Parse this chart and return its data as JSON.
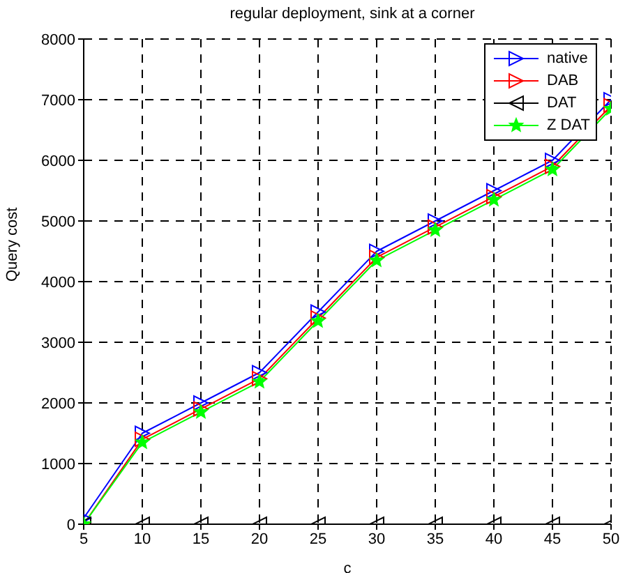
{
  "chart_data": {
    "type": "line",
    "title": "regular deployment, sink at a corner",
    "xlabel": "c",
    "ylabel": "Query cost",
    "x": [
      5,
      10,
      15,
      20,
      25,
      30,
      35,
      40,
      45,
      50
    ],
    "series": [
      {
        "name": "native",
        "color": "#0000ff",
        "marker": "triangle",
        "values": [
          100,
          1500,
          2000,
          2500,
          3500,
          4500,
          5000,
          5500,
          6000,
          7000
        ]
      },
      {
        "name": "DAB",
        "color": "#ff0000",
        "marker": "triangle",
        "values": [
          0,
          1400,
          1900,
          2400,
          3400,
          4400,
          4900,
          5400,
          5900,
          6900
        ]
      },
      {
        "name": "DAT",
        "color": "#000000",
        "marker": "triangle",
        "values": [
          0,
          0,
          0,
          0,
          0,
          0,
          0,
          0,
          0,
          0
        ]
      },
      {
        "name": "Z DAT",
        "color": "#00ff00",
        "marker": "star",
        "values": [
          0,
          1350,
          1850,
          2350,
          3350,
          4350,
          4850,
          5350,
          5850,
          6850
        ]
      }
    ],
    "xlim": [
      5,
      50
    ],
    "xticks": [
      5,
      10,
      15,
      20,
      25,
      30,
      35,
      40,
      45,
      50
    ],
    "ylim": [
      0,
      8000
    ],
    "yticks": [
      0,
      1000,
      2000,
      3000,
      4000,
      5000,
      6000,
      7000,
      8000
    ],
    "grid": true,
    "legend": "top right",
    "line_style": "solid"
  }
}
